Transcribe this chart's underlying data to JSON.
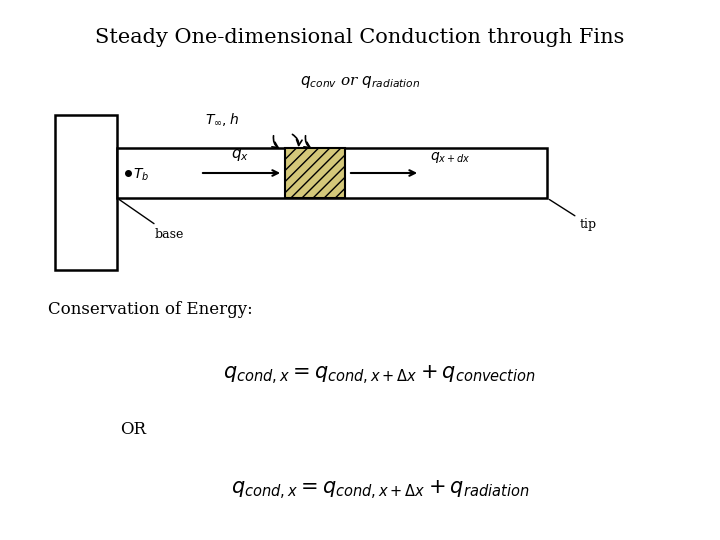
{
  "title": "Steady One-dimensional Conduction through Fins",
  "title_fontsize": 15,
  "bg_color": "#ffffff",
  "highlight_color": "#d4c87a",
  "text_T_inf_h": "$T_{\\infty}, h$",
  "text_T_b": "$T_b$",
  "text_qx": "$q_x$",
  "text_qxdx": "$q_{x+dx}$",
  "text_base": "base",
  "text_tip": "tip",
  "text_qconv": "$q_{conv}$ or $q_{radiation}$",
  "text_conservation": "Conservation of Energy:",
  "text_OR": "OR",
  "eq1": "$q_{cond,x} = q_{cond,x+\\Delta x} + q_{convection}$",
  "eq2": "$q_{cond,x} = q_{cond,x+\\Delta x} + q_{radiation}$"
}
